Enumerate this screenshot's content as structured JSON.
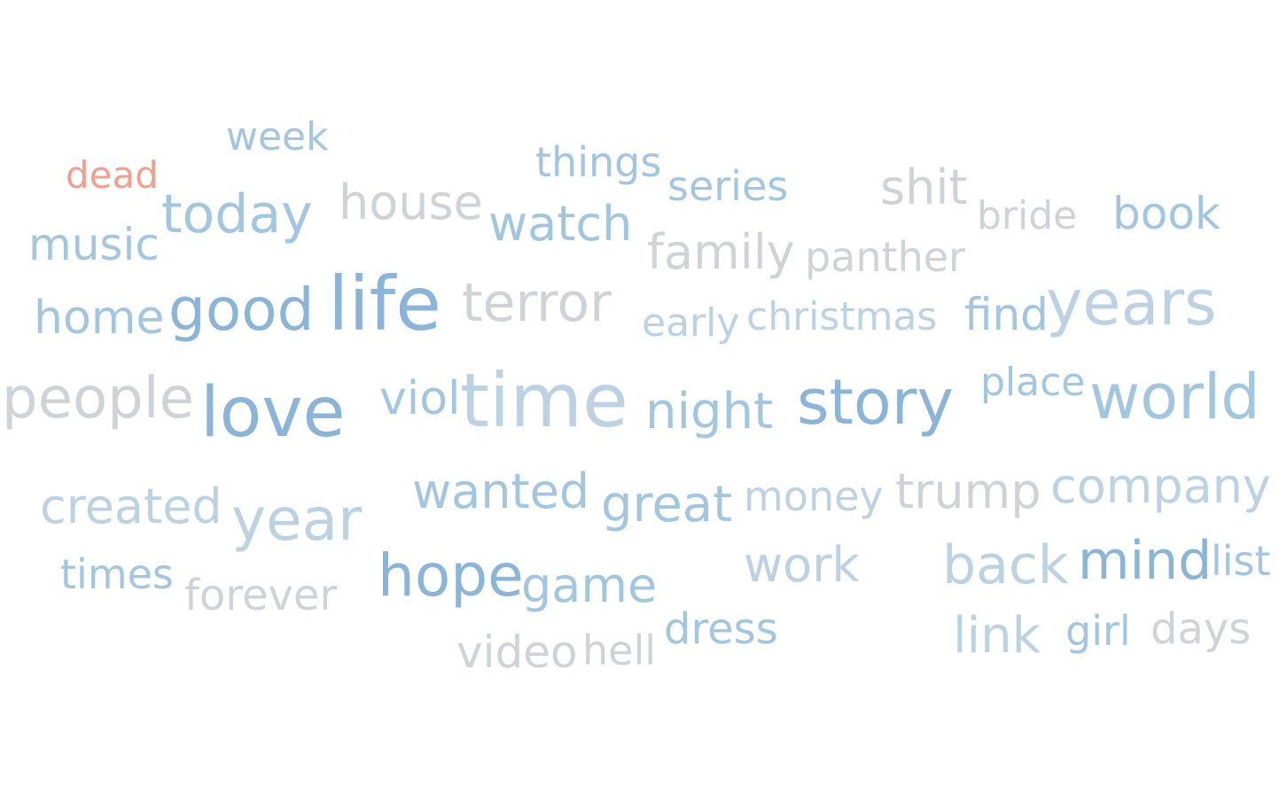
{
  "palette": {
    "blue_dark": "#8ab4d8",
    "blue_mid": "#a3c6e0",
    "blue_light": "#bcd2e2",
    "gray": "#cfd3d8",
    "red": "#f2a08e"
  },
  "words": [
    {
      "text": "week",
      "color": "blue_mid"
    },
    {
      "text": "things",
      "color": "blue_mid"
    },
    {
      "text": "dead",
      "color": "red"
    },
    {
      "text": "series",
      "color": "blue_mid"
    },
    {
      "text": "shit",
      "color": "gray"
    },
    {
      "text": "today",
      "color": "blue_mid"
    },
    {
      "text": "house",
      "color": "gray"
    },
    {
      "text": "watch",
      "color": "blue_mid"
    },
    {
      "text": "bride",
      "color": "gray"
    },
    {
      "text": "book",
      "color": "blue_mid"
    },
    {
      "text": "music",
      "color": "blue_mid"
    },
    {
      "text": "family",
      "color": "gray"
    },
    {
      "text": "panther",
      "color": "gray"
    },
    {
      "text": "home",
      "color": "blue_mid"
    },
    {
      "text": "good",
      "color": "blue_dark"
    },
    {
      "text": "life",
      "color": "blue_dark"
    },
    {
      "text": "terror",
      "color": "gray"
    },
    {
      "text": "early",
      "color": "blue_light"
    },
    {
      "text": "christmas",
      "color": "blue_light"
    },
    {
      "text": "find",
      "color": "blue_mid"
    },
    {
      "text": "years",
      "color": "blue_light"
    },
    {
      "text": "people",
      "color": "gray"
    },
    {
      "text": "love",
      "color": "blue_dark"
    },
    {
      "text": "viol",
      "color": "blue_mid"
    },
    {
      "text": "time",
      "color": "blue_light"
    },
    {
      "text": "night",
      "color": "blue_mid"
    },
    {
      "text": "story",
      "color": "blue_dark"
    },
    {
      "text": "place",
      "color": "blue_mid"
    },
    {
      "text": "world",
      "color": "blue_mid"
    },
    {
      "text": "created",
      "color": "blue_light"
    },
    {
      "text": "year",
      "color": "blue_light"
    },
    {
      "text": "wanted",
      "color": "blue_mid"
    },
    {
      "text": "great",
      "color": "blue_mid"
    },
    {
      "text": "money",
      "color": "blue_light"
    },
    {
      "text": "trump",
      "color": "gray"
    },
    {
      "text": "company",
      "color": "blue_light"
    },
    {
      "text": "times",
      "color": "blue_mid"
    },
    {
      "text": "forever",
      "color": "gray"
    },
    {
      "text": "hope",
      "color": "blue_dark"
    },
    {
      "text": "game",
      "color": "blue_mid"
    },
    {
      "text": "work",
      "color": "blue_light"
    },
    {
      "text": "back",
      "color": "blue_light"
    },
    {
      "text": "mind",
      "color": "blue_dark"
    },
    {
      "text": "list",
      "color": "blue_mid"
    },
    {
      "text": "dress",
      "color": "blue_mid"
    },
    {
      "text": "video",
      "color": "gray"
    },
    {
      "text": "hell",
      "color": "gray"
    },
    {
      "text": "link",
      "color": "blue_light"
    },
    {
      "text": "girl",
      "color": "blue_mid"
    },
    {
      "text": "days",
      "color": "gray"
    }
  ]
}
